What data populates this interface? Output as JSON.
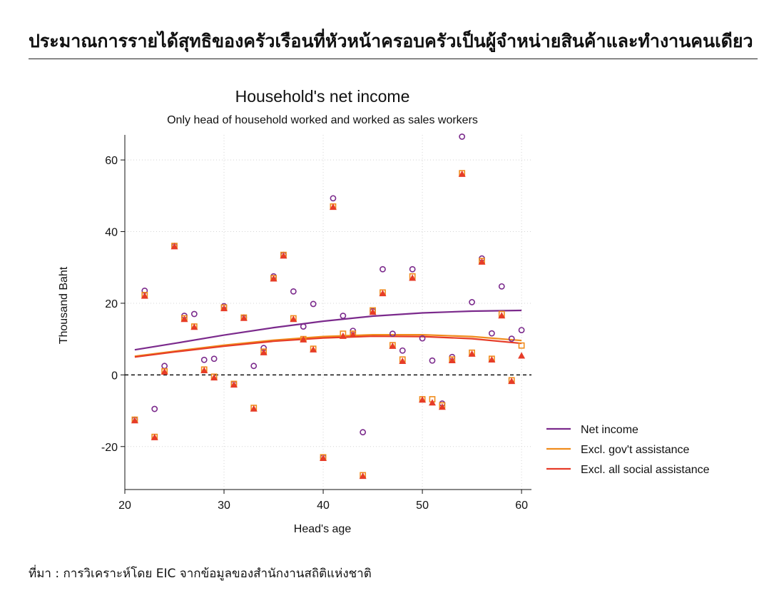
{
  "page": {
    "title": "ประมาณการรายได้สุทธิของครัวเรือนที่หัวหน้าครอบครัวเป็นผู้จำหน่ายสินค้าและทำงานคนเดียว",
    "source": "ที่มา : การวิเคราะห์โดย EIC จากข้อมูลของสำนักงานสถิติแห่งชาติ"
  },
  "chart_data": {
    "type": "scatter",
    "title": "Household's net income",
    "subtitle": "Only head of household worked and worked as sales workers",
    "xlabel": "Head's age",
    "ylabel": "Thousand Baht",
    "xlim": [
      20,
      61
    ],
    "ylim": [
      -32,
      67
    ],
    "xticks": [
      20,
      30,
      40,
      50,
      60
    ],
    "yticks": [
      -20,
      0,
      20,
      40,
      60
    ],
    "grid": true,
    "reference_line": 0,
    "legend_position": "right",
    "series": [
      {
        "name": "Net income",
        "color": "#7b2a8c",
        "marker": "circle",
        "points": [
          [
            21,
            -12.5
          ],
          [
            22,
            23.5
          ],
          [
            23,
            -9.5
          ],
          [
            24,
            2.5
          ],
          [
            25,
            36
          ],
          [
            26,
            16.5
          ],
          [
            27,
            17
          ],
          [
            28,
            4.2
          ],
          [
            29,
            4.5
          ],
          [
            30,
            19.2
          ],
          [
            31,
            -2.5
          ],
          [
            32,
            16
          ],
          [
            33,
            2.5
          ],
          [
            34,
            7.5
          ],
          [
            35,
            27.5
          ],
          [
            36,
            33.5
          ],
          [
            37,
            23.3
          ],
          [
            38,
            13.5
          ],
          [
            39,
            19.8
          ],
          [
            40,
            -23
          ],
          [
            41,
            49.3
          ],
          [
            42,
            16.5
          ],
          [
            43,
            12.3
          ],
          [
            44,
            -16
          ],
          [
            45,
            17.8
          ],
          [
            46,
            29.5
          ],
          [
            47,
            11.5
          ],
          [
            48,
            6.8
          ],
          [
            49,
            29.5
          ],
          [
            50,
            10.2
          ],
          [
            51,
            4
          ],
          [
            52,
            -8
          ],
          [
            53,
            5
          ],
          [
            54,
            66.5
          ],
          [
            55,
            20.3
          ],
          [
            56,
            32.5
          ],
          [
            57,
            11.6
          ],
          [
            58,
            24.7
          ],
          [
            59,
            10.1
          ],
          [
            60,
            12.5
          ]
        ],
        "fit": [
          [
            21,
            7
          ],
          [
            25,
            8.8
          ],
          [
            30,
            11.1
          ],
          [
            35,
            13.2
          ],
          [
            40,
            15
          ],
          [
            45,
            16.4
          ],
          [
            50,
            17.3
          ],
          [
            55,
            17.8
          ],
          [
            60,
            18
          ]
        ]
      },
      {
        "name": "Excl. gov't assistance",
        "color": "#f08c1c",
        "marker": "square",
        "points": [
          [
            21,
            -12.5
          ],
          [
            22,
            22.3
          ],
          [
            23,
            -17.3
          ],
          [
            24,
            1
          ],
          [
            25,
            36
          ],
          [
            26,
            15.8
          ],
          [
            27,
            13.5
          ],
          [
            28,
            1.5
          ],
          [
            29,
            -0.5
          ],
          [
            30,
            18.8
          ],
          [
            31,
            -2.5
          ],
          [
            32,
            16
          ],
          [
            33,
            -9.2
          ],
          [
            34,
            6.5
          ],
          [
            35,
            27
          ],
          [
            36,
            33.5
          ],
          [
            37,
            15.8
          ],
          [
            38,
            10
          ],
          [
            39,
            7.3
          ],
          [
            40,
            -23
          ],
          [
            41,
            47
          ],
          [
            42,
            11.5
          ],
          [
            43,
            11.5
          ],
          [
            44,
            -28
          ],
          [
            45,
            18
          ],
          [
            46,
            23
          ],
          [
            47,
            8.3
          ],
          [
            48,
            4.3
          ],
          [
            49,
            27.5
          ],
          [
            50,
            -6.8
          ],
          [
            51,
            -6.8
          ],
          [
            52,
            -8.5
          ],
          [
            53,
            4.3
          ],
          [
            54,
            56.3
          ],
          [
            55,
            6.2
          ],
          [
            56,
            31.8
          ],
          [
            57,
            4.5
          ],
          [
            58,
            17
          ],
          [
            59,
            -1.5
          ],
          [
            60,
            8.2
          ]
        ],
        "fit": [
          [
            21,
            5.2
          ],
          [
            25,
            6.6
          ],
          [
            30,
            8.3
          ],
          [
            35,
            9.7
          ],
          [
            40,
            10.7
          ],
          [
            45,
            11.2
          ],
          [
            50,
            11.2
          ],
          [
            55,
            10.7
          ],
          [
            60,
            9.6
          ]
        ]
      },
      {
        "name": "Excl. all social assistance",
        "color": "#e63c28",
        "marker": "triangle",
        "points": [
          [
            21,
            -12.8
          ],
          [
            22,
            22
          ],
          [
            23,
            -17.5
          ],
          [
            24,
            0.8
          ],
          [
            25,
            35.8
          ],
          [
            26,
            15.5
          ],
          [
            27,
            13.3
          ],
          [
            28,
            1.2
          ],
          [
            29,
            -0.8
          ],
          [
            30,
            18.5
          ],
          [
            31,
            -2.8
          ],
          [
            32,
            15.8
          ],
          [
            33,
            -9.5
          ],
          [
            34,
            6.2
          ],
          [
            35,
            26.8
          ],
          [
            36,
            33.2
          ],
          [
            37,
            15.5
          ],
          [
            38,
            9.8
          ],
          [
            39,
            7
          ],
          [
            40,
            -23.3
          ],
          [
            41,
            46.8
          ],
          [
            42,
            10.8
          ],
          [
            43,
            11.2
          ],
          [
            44,
            -28.3
          ],
          [
            45,
            17.5
          ],
          [
            46,
            22.7
          ],
          [
            47,
            8
          ],
          [
            48,
            3.8
          ],
          [
            49,
            27
          ],
          [
            50,
            -7
          ],
          [
            51,
            -7.8
          ],
          [
            52,
            -9
          ],
          [
            53,
            4
          ],
          [
            54,
            56
          ],
          [
            55,
            5.8
          ],
          [
            56,
            31.5
          ],
          [
            57,
            4.2
          ],
          [
            58,
            16.5
          ],
          [
            59,
            -1.8
          ],
          [
            60,
            5.3
          ]
        ],
        "fit": [
          [
            21,
            5
          ],
          [
            25,
            6.4
          ],
          [
            30,
            8
          ],
          [
            35,
            9.4
          ],
          [
            40,
            10.3
          ],
          [
            45,
            10.8
          ],
          [
            50,
            10.7
          ],
          [
            55,
            10.1
          ],
          [
            60,
            8.8
          ]
        ]
      }
    ]
  }
}
